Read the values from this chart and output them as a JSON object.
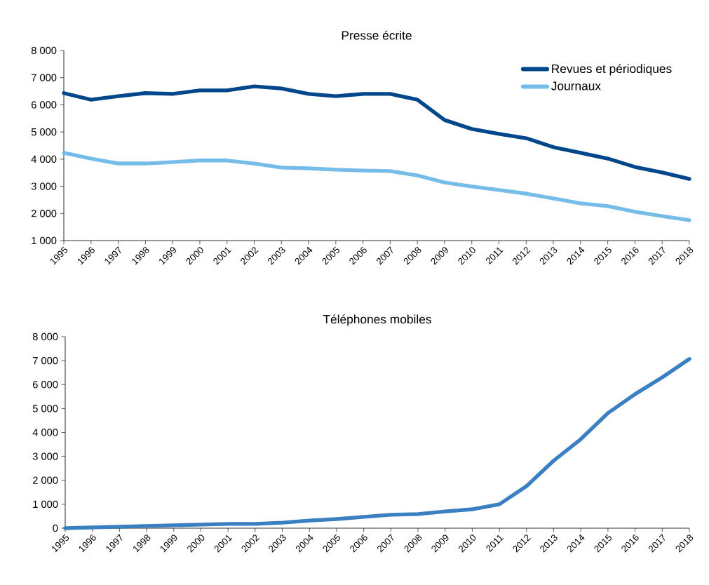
{
  "chart_data": [
    {
      "type": "line",
      "title": "Presse écrite",
      "categories": [
        "1995",
        "1996",
        "1997",
        "1998",
        "1999",
        "2000",
        "2001",
        "2002",
        "2003",
        "2004",
        "2005",
        "2006",
        "2007",
        "2008",
        "2009",
        "2010",
        "2011",
        "2012",
        "2013",
        "2014",
        "2015",
        "2016",
        "2017",
        "2018"
      ],
      "series": [
        {
          "name": "Revues et périodiques",
          "color": "#00468b",
          "values": [
            6430,
            6190,
            6320,
            6430,
            6400,
            6530,
            6530,
            6680,
            6600,
            6400,
            6320,
            6400,
            6400,
            6190,
            5440,
            5110,
            4930,
            4770,
            4440,
            4230,
            4020,
            3710,
            3510,
            3270
          ]
        },
        {
          "name": "Journaux",
          "color": "#75bde8",
          "values": [
            4230,
            4020,
            3840,
            3840,
            3890,
            3950,
            3950,
            3840,
            3690,
            3660,
            3610,
            3580,
            3560,
            3400,
            3140,
            2990,
            2860,
            2730,
            2550,
            2370,
            2270,
            2060,
            1900,
            1750
          ]
        }
      ],
      "ylim": [
        1000,
        8000
      ],
      "yticks": [
        {
          "value": 1000,
          "label": "1 000"
        },
        {
          "value": 2000,
          "label": "2 000"
        },
        {
          "value": 3000,
          "label": "3 000"
        },
        {
          "value": 4000,
          "label": "4 000"
        },
        {
          "value": 5000,
          "label": "5 000"
        },
        {
          "value": 6000,
          "label": "6 000"
        },
        {
          "value": 7000,
          "label": "7 000"
        },
        {
          "value": 8000,
          "label": "8 000"
        }
      ],
      "legend": "top right",
      "line_style": "solid"
    },
    {
      "type": "line",
      "title": "Téléphones mobiles",
      "categories": [
        "1995",
        "1996",
        "1997",
        "1998",
        "1999",
        "2000",
        "2001",
        "2002",
        "2003",
        "2004",
        "2005",
        "2006",
        "2007",
        "2008",
        "2009",
        "2010",
        "2011",
        "2012",
        "2013",
        "2014",
        "2015",
        "2016",
        "2017",
        "2018"
      ],
      "series": [
        {
          "color": "#3a7fc1",
          "values": [
            0,
            30,
            60,
            90,
            120,
            150,
            180,
            180,
            230,
            320,
            380,
            470,
            560,
            590,
            700,
            790,
            1000,
            1760,
            2820,
            3720,
            4810,
            5600,
            6300,
            7070
          ]
        }
      ],
      "ylim": [
        0,
        8000
      ],
      "yticks": [
        0,
        {
          "value": 1000,
          "label": "1 000"
        },
        {
          "value": 2000,
          "label": "2 000"
        },
        {
          "value": 3000,
          "label": "3 000"
        },
        {
          "value": 4000,
          "label": "4 000"
        },
        {
          "value": 5000,
          "label": "5 000"
        },
        {
          "value": 6000,
          "label": "6 000"
        },
        {
          "value": 7000,
          "label": "7 000"
        },
        {
          "value": 8000,
          "label": "8 000"
        }
      ],
      "line_style": "solid"
    }
  ]
}
